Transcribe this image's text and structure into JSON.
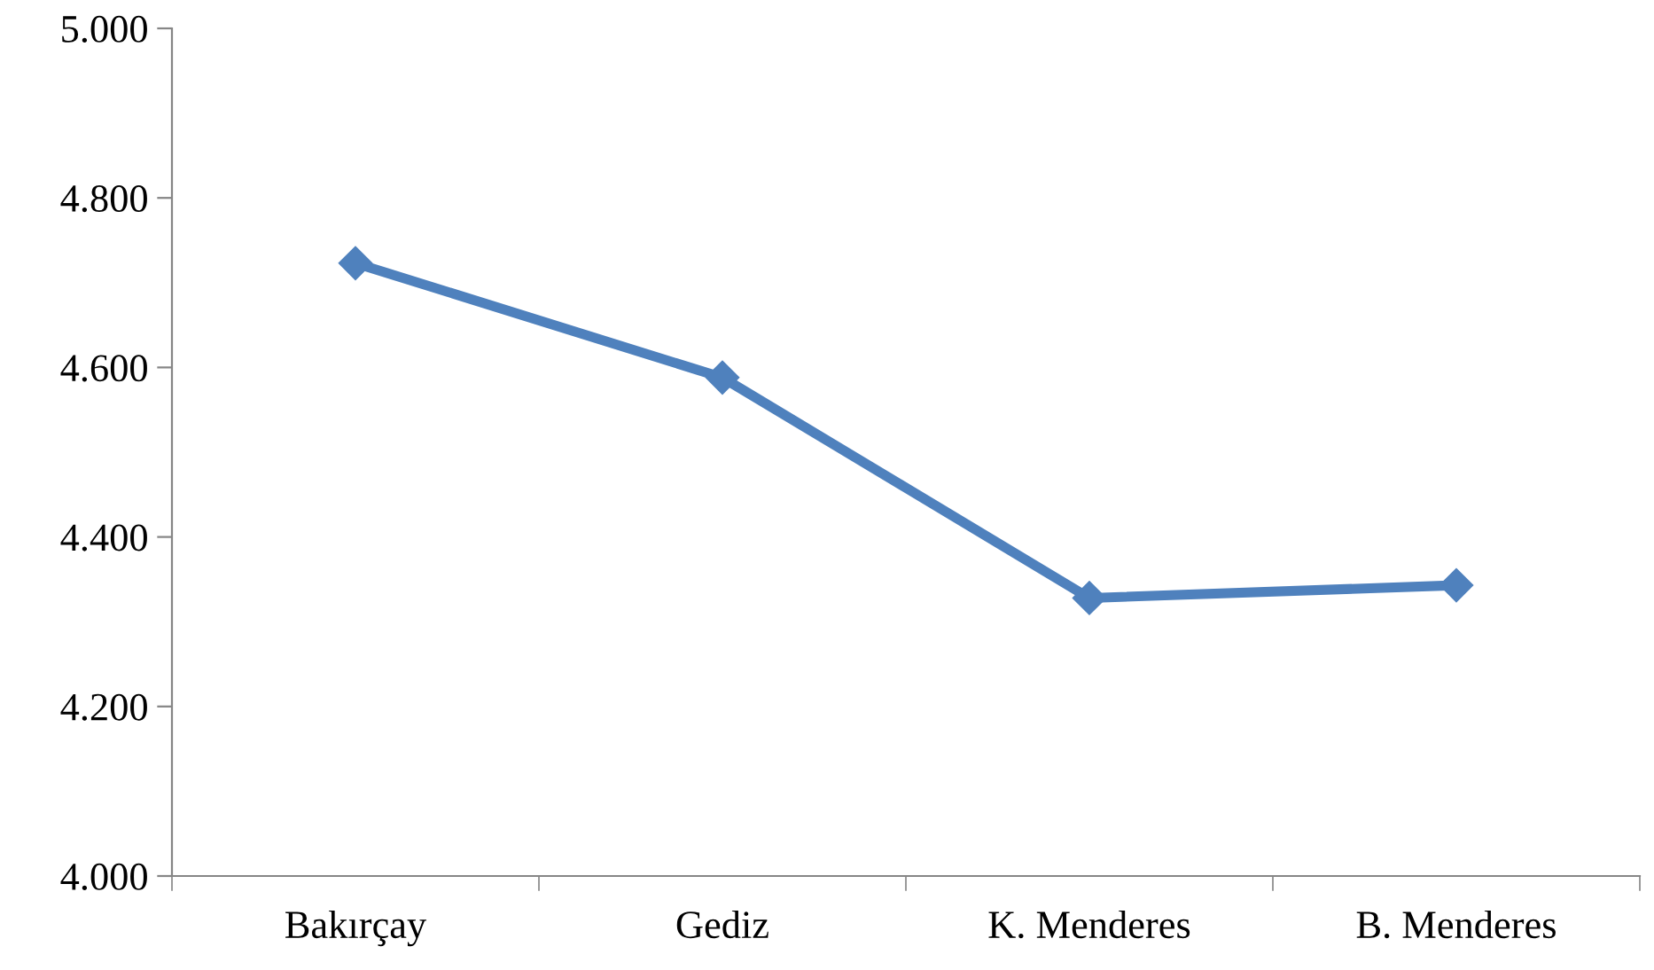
{
  "chart_data": {
    "type": "line",
    "categories": [
      "Bakırçay",
      "Gediz",
      "K. Menderes",
      "B. Menderes"
    ],
    "series": [
      {
        "color": "#4f81bd",
        "values": [
          4.723,
          4.588,
          4.328,
          4.343
        ]
      }
    ],
    "ylim": [
      4.0,
      5.0
    ],
    "yticks": [
      {
        "value": 4.0,
        "label": "4.000"
      },
      {
        "value": 4.2,
        "label": "4.200"
      },
      {
        "value": 4.4,
        "label": "4.400"
      },
      {
        "value": 4.6,
        "label": "4.600"
      },
      {
        "value": 4.8,
        "label": "4.800"
      },
      {
        "value": 5.0,
        "label": "5.000"
      }
    ],
    "grid": false,
    "marker": "diamond",
    "line_style": "solid"
  }
}
